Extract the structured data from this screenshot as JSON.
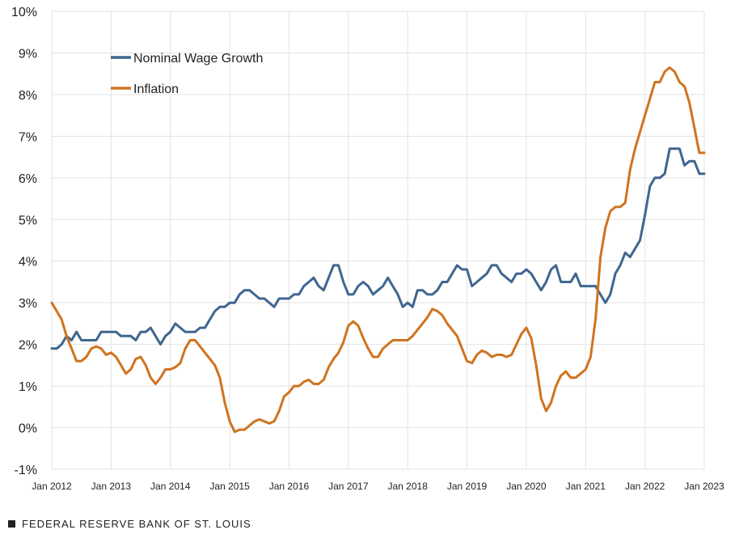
{
  "chart_data": {
    "type": "line",
    "ylim": [
      -1,
      10
    ],
    "y_ticks": [
      "-1%",
      "0%",
      "1%",
      "2%",
      "3%",
      "4%",
      "5%",
      "6%",
      "7%",
      "8%",
      "9%",
      "10%"
    ],
    "x_tick_labels": [
      "Jan 2012",
      "Jan 2013",
      "Jan 2014",
      "Jan 2015",
      "Jan 2016",
      "Jan 2017",
      "Jan 2018",
      "Jan 2019",
      "Jan 2020",
      "Jan 2021",
      "Jan 2022",
      "Jan 2023"
    ],
    "x_start": "2012-01",
    "x_end": "2023-01",
    "legend_position": "top-left",
    "series": [
      {
        "name": "Nominal Wage Growth",
        "color": "#3f6690",
        "points": [
          [
            "2012-01",
            1.9
          ],
          [
            "2012-02",
            1.9
          ],
          [
            "2012-03",
            2.0
          ],
          [
            "2012-04",
            2.2
          ],
          [
            "2012-05",
            2.1
          ],
          [
            "2012-06",
            2.3
          ],
          [
            "2012-07",
            2.1
          ],
          [
            "2012-08",
            2.1
          ],
          [
            "2012-09",
            2.1
          ],
          [
            "2012-10",
            2.1
          ],
          [
            "2012-11",
            2.3
          ],
          [
            "2012-12",
            2.3
          ],
          [
            "2013-01",
            2.3
          ],
          [
            "2013-02",
            2.3
          ],
          [
            "2013-03",
            2.2
          ],
          [
            "2013-04",
            2.2
          ],
          [
            "2013-05",
            2.2
          ],
          [
            "2013-06",
            2.1
          ],
          [
            "2013-07",
            2.3
          ],
          [
            "2013-08",
            2.3
          ],
          [
            "2013-09",
            2.4
          ],
          [
            "2013-10",
            2.2
          ],
          [
            "2013-11",
            2.0
          ],
          [
            "2013-12",
            2.2
          ],
          [
            "2014-01",
            2.3
          ],
          [
            "2014-02",
            2.5
          ],
          [
            "2014-03",
            2.4
          ],
          [
            "2014-04",
            2.3
          ],
          [
            "2014-05",
            2.3
          ],
          [
            "2014-06",
            2.3
          ],
          [
            "2014-07",
            2.4
          ],
          [
            "2014-08",
            2.4
          ],
          [
            "2014-09",
            2.6
          ],
          [
            "2014-10",
            2.8
          ],
          [
            "2014-11",
            2.9
          ],
          [
            "2014-12",
            2.9
          ],
          [
            "2015-01",
            3.0
          ],
          [
            "2015-02",
            3.0
          ],
          [
            "2015-03",
            3.2
          ],
          [
            "2015-04",
            3.3
          ],
          [
            "2015-05",
            3.3
          ],
          [
            "2015-06",
            3.2
          ],
          [
            "2015-07",
            3.1
          ],
          [
            "2015-08",
            3.1
          ],
          [
            "2015-09",
            3.0
          ],
          [
            "2015-10",
            2.9
          ],
          [
            "2015-11",
            3.1
          ],
          [
            "2015-12",
            3.1
          ],
          [
            "2016-01",
            3.1
          ],
          [
            "2016-02",
            3.2
          ],
          [
            "2016-03",
            3.2
          ],
          [
            "2016-04",
            3.4
          ],
          [
            "2016-05",
            3.5
          ],
          [
            "2016-06",
            3.6
          ],
          [
            "2016-07",
            3.4
          ],
          [
            "2016-08",
            3.3
          ],
          [
            "2016-09",
            3.6
          ],
          [
            "2016-10",
            3.9
          ],
          [
            "2016-11",
            3.9
          ],
          [
            "2016-12",
            3.5
          ],
          [
            "2017-01",
            3.2
          ],
          [
            "2017-02",
            3.2
          ],
          [
            "2017-03",
            3.4
          ],
          [
            "2017-04",
            3.5
          ],
          [
            "2017-05",
            3.4
          ],
          [
            "2017-06",
            3.2
          ],
          [
            "2017-07",
            3.3
          ],
          [
            "2017-08",
            3.4
          ],
          [
            "2017-09",
            3.6
          ],
          [
            "2017-10",
            3.4
          ],
          [
            "2017-11",
            3.2
          ],
          [
            "2017-12",
            2.9
          ],
          [
            "2018-01",
            3.0
          ],
          [
            "2018-02",
            2.9
          ],
          [
            "2018-03",
            3.3
          ],
          [
            "2018-04",
            3.3
          ],
          [
            "2018-05",
            3.2
          ],
          [
            "2018-06",
            3.2
          ],
          [
            "2018-07",
            3.3
          ],
          [
            "2018-08",
            3.5
          ],
          [
            "2018-09",
            3.5
          ],
          [
            "2018-10",
            3.7
          ],
          [
            "2018-11",
            3.9
          ],
          [
            "2018-12",
            3.8
          ],
          [
            "2019-01",
            3.8
          ],
          [
            "2019-02",
            3.4
          ],
          [
            "2019-03",
            3.5
          ],
          [
            "2019-04",
            3.6
          ],
          [
            "2019-05",
            3.7
          ],
          [
            "2019-06",
            3.9
          ],
          [
            "2019-07",
            3.9
          ],
          [
            "2019-08",
            3.7
          ],
          [
            "2019-09",
            3.6
          ],
          [
            "2019-10",
            3.5
          ],
          [
            "2019-11",
            3.7
          ],
          [
            "2019-12",
            3.7
          ],
          [
            "2020-01",
            3.8
          ],
          [
            "2020-02",
            3.7
          ],
          [
            "2020-03",
            3.5
          ],
          [
            "2020-04",
            3.3
          ],
          [
            "2020-05",
            3.5
          ],
          [
            "2020-06",
            3.8
          ],
          [
            "2020-07",
            3.9
          ],
          [
            "2020-08",
            3.5
          ],
          [
            "2020-09",
            3.5
          ],
          [
            "2020-10",
            3.5
          ],
          [
            "2020-11",
            3.7
          ],
          [
            "2020-12",
            3.4
          ],
          [
            "2021-01",
            3.4
          ],
          [
            "2021-02",
            3.4
          ],
          [
            "2021-03",
            3.4
          ],
          [
            "2021-04",
            3.2
          ],
          [
            "2021-05",
            3.0
          ],
          [
            "2021-06",
            3.2
          ],
          [
            "2021-07",
            3.7
          ],
          [
            "2021-08",
            3.9
          ],
          [
            "2021-09",
            4.2
          ],
          [
            "2021-10",
            4.1
          ],
          [
            "2021-11",
            4.3
          ],
          [
            "2021-12",
            4.5
          ],
          [
            "2022-01",
            5.1
          ],
          [
            "2022-02",
            5.8
          ],
          [
            "2022-03",
            6.0
          ],
          [
            "2022-04",
            6.0
          ],
          [
            "2022-05",
            6.1
          ],
          [
            "2022-06",
            6.7
          ],
          [
            "2022-07",
            6.7
          ],
          [
            "2022-08",
            6.7
          ],
          [
            "2022-09",
            6.3
          ],
          [
            "2022-10",
            6.4
          ],
          [
            "2022-11",
            6.4
          ],
          [
            "2022-12",
            6.1
          ],
          [
            "2023-01",
            6.1
          ]
        ]
      },
      {
        "name": "Inflation",
        "color": "#d0731f",
        "points": [
          [
            "2012-01",
            3.0
          ],
          [
            "2012-02",
            2.8
          ],
          [
            "2012-03",
            2.6
          ],
          [
            "2012-04",
            2.2
          ],
          [
            "2012-05",
            1.9
          ],
          [
            "2012-06",
            1.6
          ],
          [
            "2012-07",
            1.6
          ],
          [
            "2012-08",
            1.7
          ],
          [
            "2012-09",
            1.9
          ],
          [
            "2012-10",
            1.95
          ],
          [
            "2012-11",
            1.9
          ],
          [
            "2012-12",
            1.75
          ],
          [
            "2013-01",
            1.8
          ],
          [
            "2013-02",
            1.7
          ],
          [
            "2013-03",
            1.5
          ],
          [
            "2013-04",
            1.3
          ],
          [
            "2013-05",
            1.4
          ],
          [
            "2013-06",
            1.65
          ],
          [
            "2013-07",
            1.7
          ],
          [
            "2013-08",
            1.5
          ],
          [
            "2013-09",
            1.2
          ],
          [
            "2013-10",
            1.05
          ],
          [
            "2013-11",
            1.2
          ],
          [
            "2013-12",
            1.4
          ],
          [
            "2014-01",
            1.4
          ],
          [
            "2014-02",
            1.45
          ],
          [
            "2014-03",
            1.55
          ],
          [
            "2014-04",
            1.9
          ],
          [
            "2014-05",
            2.1
          ],
          [
            "2014-06",
            2.1
          ],
          [
            "2014-07",
            1.95
          ],
          [
            "2014-08",
            1.8
          ],
          [
            "2014-09",
            1.65
          ],
          [
            "2014-10",
            1.5
          ],
          [
            "2014-11",
            1.2
          ],
          [
            "2014-12",
            0.6
          ],
          [
            "2015-01",
            0.15
          ],
          [
            "2015-02",
            -0.1
          ],
          [
            "2015-03",
            -0.05
          ],
          [
            "2015-04",
            -0.05
          ],
          [
            "2015-05",
            0.05
          ],
          [
            "2015-06",
            0.15
          ],
          [
            "2015-07",
            0.2
          ],
          [
            "2015-08",
            0.15
          ],
          [
            "2015-09",
            0.1
          ],
          [
            "2015-10",
            0.15
          ],
          [
            "2015-11",
            0.4
          ],
          [
            "2015-12",
            0.75
          ],
          [
            "2016-01",
            0.85
          ],
          [
            "2016-02",
            1.0
          ],
          [
            "2016-03",
            1.0
          ],
          [
            "2016-04",
            1.1
          ],
          [
            "2016-05",
            1.15
          ],
          [
            "2016-06",
            1.05
          ],
          [
            "2016-07",
            1.05
          ],
          [
            "2016-08",
            1.15
          ],
          [
            "2016-09",
            1.45
          ],
          [
            "2016-10",
            1.65
          ],
          [
            "2016-11",
            1.8
          ],
          [
            "2016-12",
            2.05
          ],
          [
            "2017-01",
            2.45
          ],
          [
            "2017-02",
            2.55
          ],
          [
            "2017-03",
            2.45
          ],
          [
            "2017-04",
            2.15
          ],
          [
            "2017-05",
            1.9
          ],
          [
            "2017-06",
            1.7
          ],
          [
            "2017-07",
            1.7
          ],
          [
            "2017-08",
            1.9
          ],
          [
            "2017-09",
            2.0
          ],
          [
            "2017-10",
            2.1
          ],
          [
            "2017-11",
            2.1
          ],
          [
            "2017-12",
            2.1
          ],
          [
            "2018-01",
            2.1
          ],
          [
            "2018-02",
            2.2
          ],
          [
            "2018-03",
            2.35
          ],
          [
            "2018-04",
            2.5
          ],
          [
            "2018-05",
            2.65
          ],
          [
            "2018-06",
            2.85
          ],
          [
            "2018-07",
            2.8
          ],
          [
            "2018-08",
            2.7
          ],
          [
            "2018-09",
            2.5
          ],
          [
            "2018-10",
            2.35
          ],
          [
            "2018-11",
            2.2
          ],
          [
            "2018-12",
            1.9
          ],
          [
            "2019-01",
            1.6
          ],
          [
            "2019-02",
            1.55
          ],
          [
            "2019-03",
            1.75
          ],
          [
            "2019-04",
            1.85
          ],
          [
            "2019-05",
            1.8
          ],
          [
            "2019-06",
            1.7
          ],
          [
            "2019-07",
            1.75
          ],
          [
            "2019-08",
            1.75
          ],
          [
            "2019-09",
            1.7
          ],
          [
            "2019-10",
            1.75
          ],
          [
            "2019-11",
            2.0
          ],
          [
            "2019-12",
            2.25
          ],
          [
            "2020-01",
            2.4
          ],
          [
            "2020-02",
            2.15
          ],
          [
            "2020-03",
            1.5
          ],
          [
            "2020-04",
            0.7
          ],
          [
            "2020-05",
            0.4
          ],
          [
            "2020-06",
            0.6
          ],
          [
            "2020-07",
            1.0
          ],
          [
            "2020-08",
            1.25
          ],
          [
            "2020-09",
            1.35
          ],
          [
            "2020-10",
            1.2
          ],
          [
            "2020-11",
            1.2
          ],
          [
            "2020-12",
            1.3
          ],
          [
            "2021-01",
            1.4
          ],
          [
            "2021-02",
            1.7
          ],
          [
            "2021-03",
            2.6
          ],
          [
            "2021-04",
            4.1
          ],
          [
            "2021-05",
            4.8
          ],
          [
            "2021-06",
            5.2
          ],
          [
            "2021-07",
            5.3
          ],
          [
            "2021-08",
            5.3
          ],
          [
            "2021-09",
            5.4
          ],
          [
            "2021-10",
            6.2
          ],
          [
            "2021-11",
            6.7
          ],
          [
            "2021-12",
            7.1
          ],
          [
            "2022-01",
            7.5
          ],
          [
            "2022-02",
            7.9
          ],
          [
            "2022-03",
            8.3
          ],
          [
            "2022-04",
            8.3
          ],
          [
            "2022-05",
            8.55
          ],
          [
            "2022-06",
            8.65
          ],
          [
            "2022-07",
            8.55
          ],
          [
            "2022-08",
            8.3
          ],
          [
            "2022-09",
            8.2
          ],
          [
            "2022-10",
            7.8
          ],
          [
            "2022-11",
            7.2
          ],
          [
            "2022-12",
            6.6
          ],
          [
            "2023-01",
            6.6
          ]
        ]
      }
    ]
  },
  "footer": {
    "source": "FEDERAL RESERVE BANK OF ST. LOUIS"
  }
}
